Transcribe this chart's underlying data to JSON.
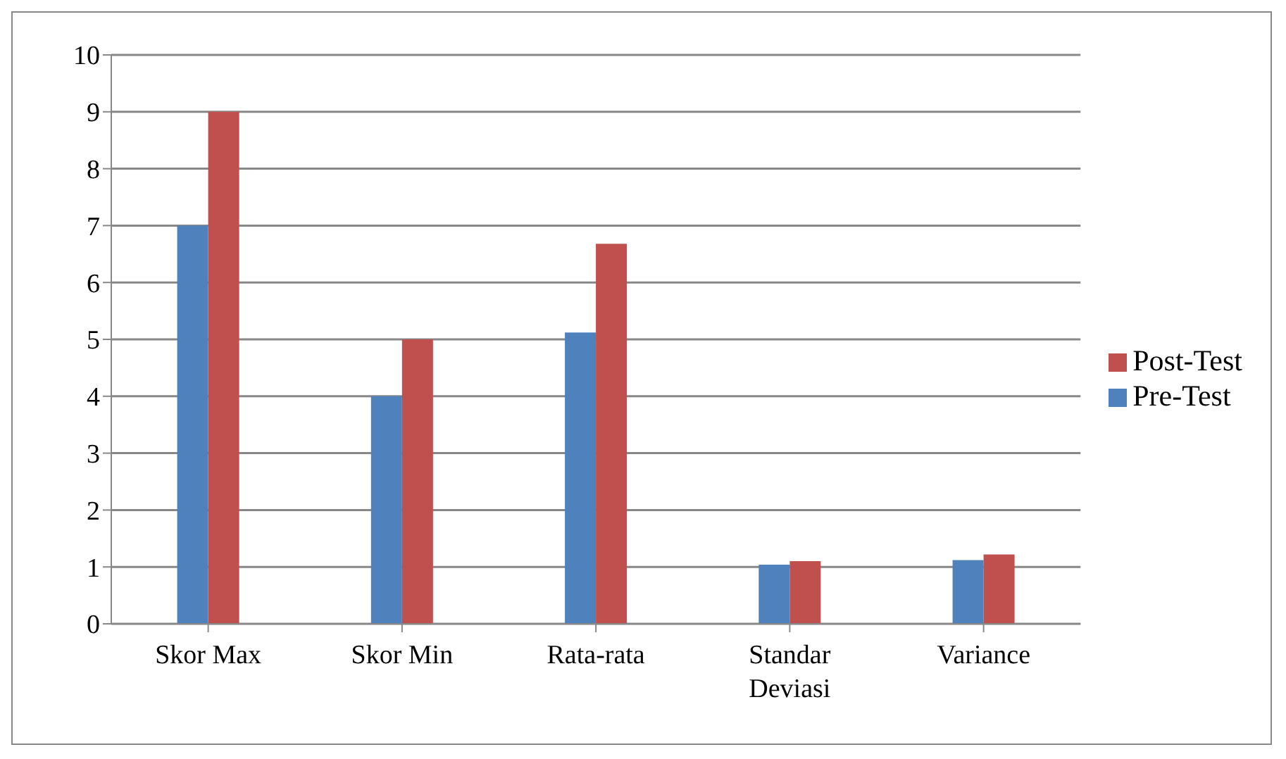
{
  "chart_data": {
    "type": "bar",
    "categories": [
      "Skor Max",
      "Skor Min",
      "Rata-rata",
      "Standar Deviasi",
      "Variance"
    ],
    "series": [
      {
        "name": "Pre-Test",
        "color": "#4f81bd",
        "values": [
          7,
          4,
          5.12,
          1.04,
          1.12
        ]
      },
      {
        "name": "Post-Test",
        "color": "#c0504d",
        "values": [
          9,
          5,
          6.68,
          1.1,
          1.22
        ]
      }
    ],
    "ylim": [
      0,
      10
    ],
    "yticks": [
      0,
      1,
      2,
      3,
      4,
      5,
      6,
      7,
      8,
      9,
      10
    ],
    "grid": "y",
    "legend": "right"
  }
}
